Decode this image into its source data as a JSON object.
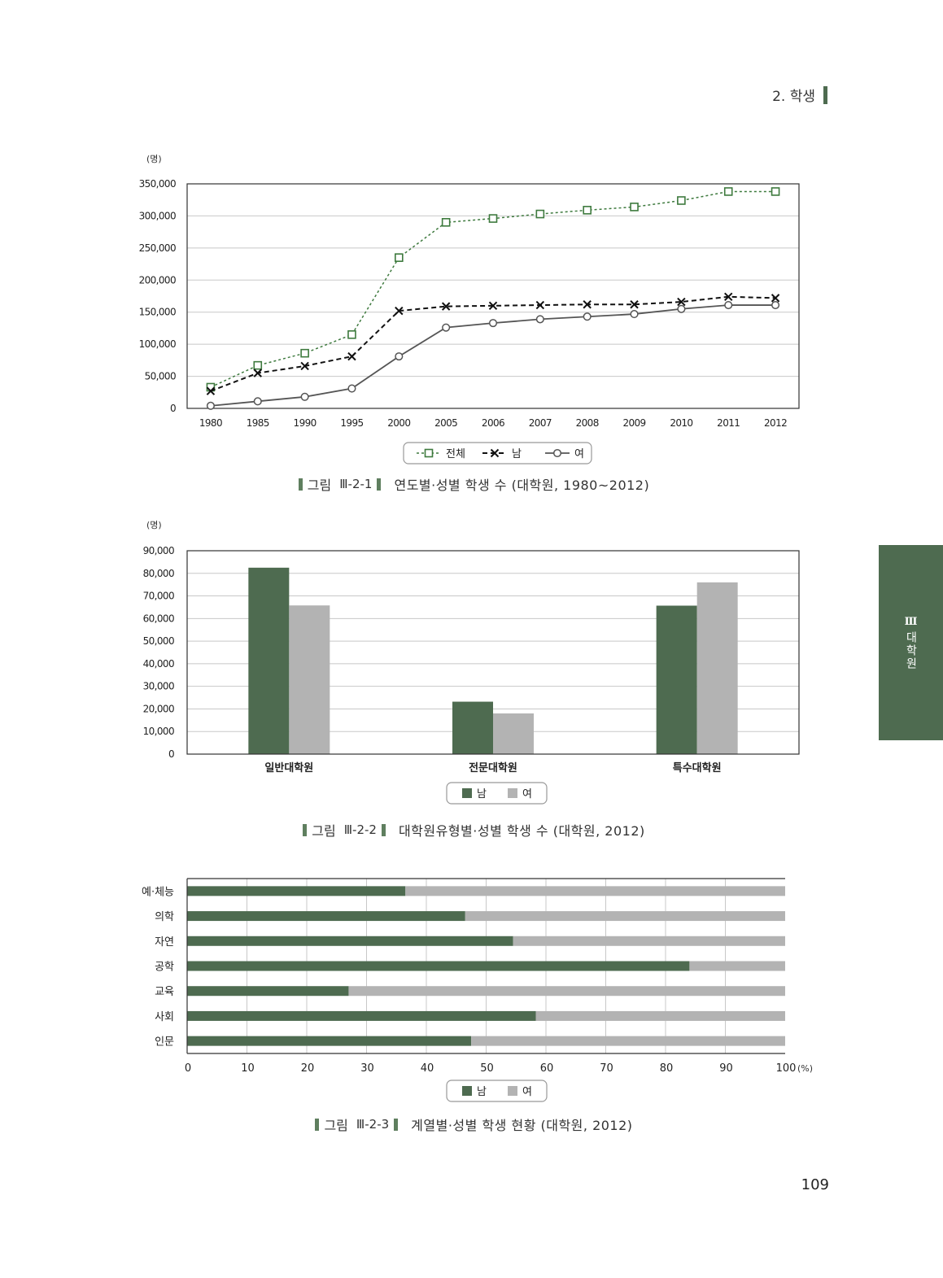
{
  "header": {
    "section": "2. 학생"
  },
  "side_tab": {
    "roman": "Ⅲ",
    "text": "대학원"
  },
  "page_number": "109",
  "colors": {
    "accent": "#4e6b50",
    "male": "#4e6b50",
    "female": "#b3b3b3",
    "line_total": "#3e7a3e"
  },
  "captions": [
    {
      "label": "그림",
      "number": "Ⅲ-2-1",
      "text": "연도별·성별 학생 수 (대학원, 1980~2012)"
    },
    {
      "label": "그림",
      "number": "Ⅲ-2-2",
      "text": "대학원유형별·성별 학생 수 (대학원, 2012)"
    },
    {
      "label": "그림",
      "number": "Ⅲ-2-3",
      "text": "계열별·성별 학생 현황 (대학원, 2012)"
    }
  ],
  "chart_data": [
    {
      "type": "line",
      "ylabel": "(명)",
      "ylim": [
        0,
        350000
      ],
      "yticks": [
        "0",
        "50,000",
        "100,000",
        "150,000",
        "200,000",
        "250,000",
        "300,000",
        "350,000"
      ],
      "categories": [
        "1980",
        "1985",
        "1990",
        "1995",
        "2000",
        "2005",
        "2006",
        "2007",
        "2008",
        "2009",
        "2010",
        "2011",
        "2012"
      ],
      "grid": true,
      "legend_position": "bottom",
      "series": [
        {
          "name": "전체",
          "marker": "square",
          "values": [
            33000,
            67000,
            86000,
            115000,
            235000,
            290000,
            296000,
            303000,
            309000,
            314000,
            324000,
            338000,
            338000
          ]
        },
        {
          "name": "남",
          "marker": "x",
          "values": [
            27000,
            55000,
            66000,
            81000,
            152000,
            159000,
            160000,
            161000,
            162000,
            162000,
            166000,
            174000,
            172000
          ]
        },
        {
          "name": "여",
          "marker": "circle",
          "values": [
            4000,
            11000,
            18000,
            31000,
            81000,
            126000,
            133000,
            139000,
            143000,
            147000,
            155000,
            161000,
            161000
          ]
        }
      ]
    },
    {
      "type": "bar",
      "ylabel": "(명)",
      "ylim": [
        0,
        90000
      ],
      "yticks": [
        "0",
        "10,000",
        "20,000",
        "30,000",
        "40,000",
        "50,000",
        "60,000",
        "70,000",
        "80,000",
        "90,000"
      ],
      "categories": [
        "일반대학원",
        "전문대학원",
        "특수대학원"
      ],
      "grid": true,
      "legend_position": "bottom",
      "series": [
        {
          "name": "남",
          "values": [
            82500,
            23200,
            65700
          ]
        },
        {
          "name": "여",
          "values": [
            65800,
            18000,
            76000
          ]
        }
      ]
    },
    {
      "type": "bar",
      "orientation": "horizontal-stacked",
      "xunit": "(%)",
      "xlim": [
        0,
        100
      ],
      "xticks": [
        "0",
        "10",
        "20",
        "30",
        "40",
        "50",
        "60",
        "70",
        "80",
        "90",
        "100"
      ],
      "categories": [
        "예·체능",
        "의학",
        "자연",
        "공학",
        "교육",
        "사회",
        "인문"
      ],
      "grid": true,
      "legend_position": "bottom",
      "series": [
        {
          "name": "남",
          "values": [
            36.5,
            46.5,
            54.5,
            84.0,
            27.0,
            58.3,
            47.5
          ]
        },
        {
          "name": "여",
          "values": [
            63.5,
            53.5,
            45.5,
            16.0,
            73.0,
            41.7,
            52.5
          ]
        }
      ]
    }
  ]
}
